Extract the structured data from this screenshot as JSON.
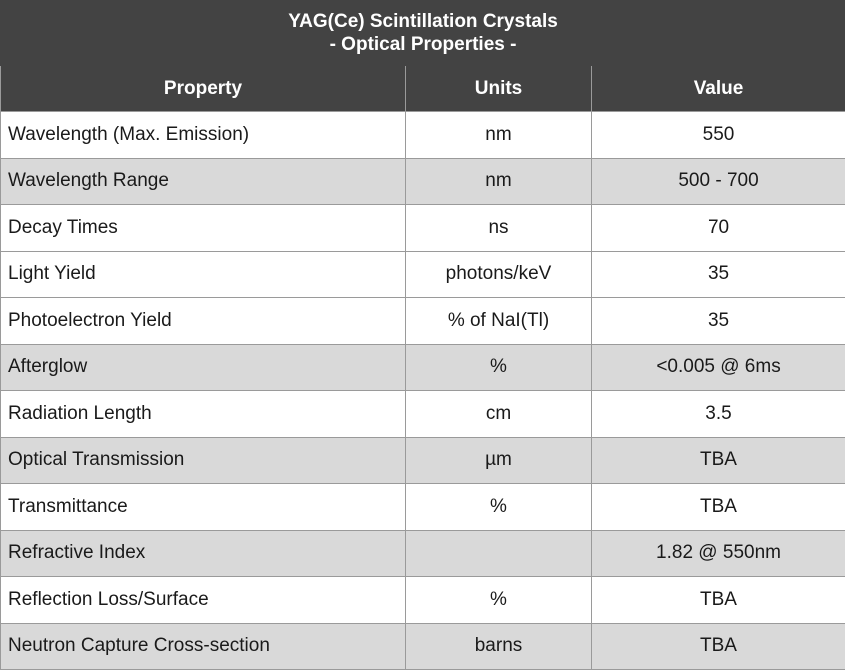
{
  "table": {
    "title_line1": "YAG(Ce) Scintillation Crystals",
    "title_line2": "- Optical Properties -",
    "headers": {
      "property": "Property",
      "units": "Units",
      "value": "Value"
    },
    "rows": [
      {
        "property": "Wavelength (Max. Emission)",
        "units": "nm",
        "value": "550"
      },
      {
        "property": "Wavelength Range",
        "units": "nm",
        "value": "500 - 700"
      },
      {
        "property": "Decay Times",
        "units": "ns",
        "value": "70"
      },
      {
        "property": "Light Yield",
        "units": "photons/keV",
        "value": "35"
      },
      {
        "property": "Photoelectron Yield",
        "units": "% of NaI(Tl)",
        "value": "35"
      },
      {
        "property": "Afterglow",
        "units": "%",
        "value": "<0.005 @ 6ms"
      },
      {
        "property": "Radiation Length",
        "units": "cm",
        "value": "3.5"
      },
      {
        "property": "Optical Transmission",
        "units": "µm",
        "value": "TBA"
      },
      {
        "property": "Transmittance",
        "units": "%",
        "value": "TBA"
      },
      {
        "property": "Refractive Index",
        "units": "",
        "value": "1.82 @ 550nm"
      },
      {
        "property": "Reflection Loss/Surface",
        "units": "%",
        "value": "TBA"
      },
      {
        "property": "Neutron Capture Cross-section",
        "units": "barns",
        "value": "TBA"
      }
    ]
  },
  "colors": {
    "header_background": "#434343",
    "header_text": "#ffffff",
    "row_alt_background": "#d9d9d9",
    "row_background": "#ffffff"
  }
}
